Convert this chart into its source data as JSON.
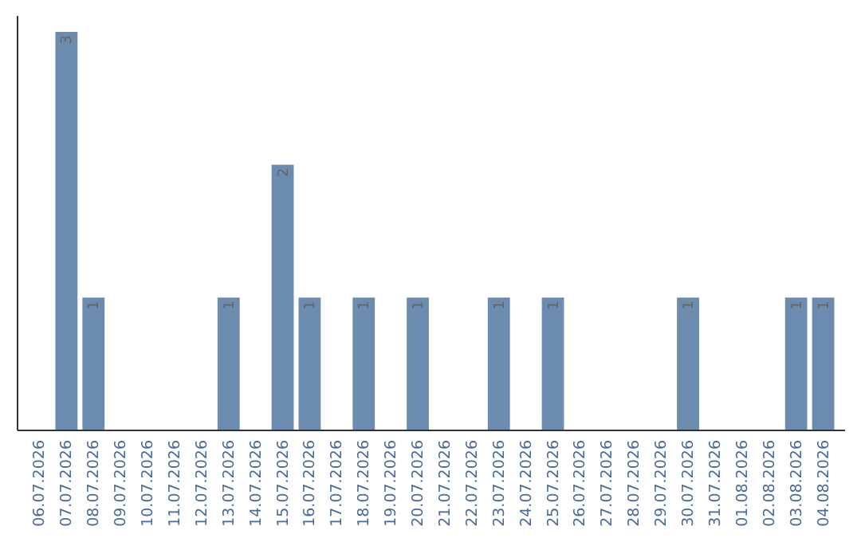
{
  "chart_data": {
    "type": "bar",
    "categories": [
      "06.07.2026",
      "07.07.2026",
      "08.07.2026",
      "09.07.2026",
      "10.07.2026",
      "11.07.2026",
      "12.07.2026",
      "13.07.2026",
      "14.07.2026",
      "15.07.2026",
      "16.07.2026",
      "17.07.2026",
      "18.07.2026",
      "19.07.2026",
      "20.07.2026",
      "21.07.2026",
      "22.07.2026",
      "23.07.2026",
      "24.07.2026",
      "25.07.2026",
      "26.07.2026",
      "27.07.2026",
      "28.07.2026",
      "29.07.2026",
      "30.07.2026",
      "31.07.2026",
      "01.08.2026",
      "02.08.2026",
      "03.08.2026",
      "04.08.2026"
    ],
    "values": [
      0,
      3,
      1,
      0,
      0,
      0,
      0,
      1,
      0,
      2,
      1,
      0,
      1,
      0,
      1,
      0,
      0,
      1,
      0,
      1,
      0,
      0,
      0,
      0,
      1,
      0,
      0,
      0,
      1,
      1
    ],
    "value_labels": [
      null,
      "3",
      "1",
      null,
      null,
      null,
      null,
      "1",
      null,
      "2",
      "1",
      null,
      "1",
      null,
      "1",
      null,
      null,
      "1",
      null,
      "1",
      null,
      null,
      null,
      null,
      "1",
      null,
      null,
      null,
      "1",
      "1"
    ],
    "color": "#6b8caf",
    "ylim": [
      0,
      3
    ],
    "tick_labels": "x"
  }
}
